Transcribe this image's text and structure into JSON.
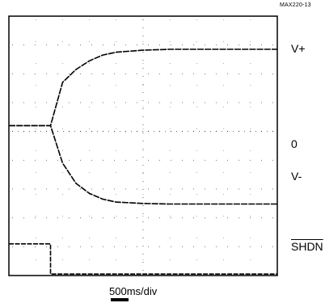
{
  "figure_id": "MAX220-13",
  "chart_data": {
    "type": "line",
    "xlabel": "500ms/div",
    "x_divisions": 10,
    "y_divisions": 9,
    "grid": "dotted",
    "reference_labels": {
      "v_plus": "V+",
      "zero": "0",
      "v_minus": "V-",
      "shdn": "SHDN"
    },
    "series": [
      {
        "x": [
          0,
          0.4,
          0.8,
          1.2,
          1.55,
          2.0,
          2.5,
          3.0,
          3.5,
          4.0,
          5.0,
          6.0,
          7.0,
          8.0,
          9.0,
          10.0
        ],
        "y": [
          5.2,
          5.2,
          5.2,
          5.2,
          5.2,
          6.7,
          7.15,
          7.45,
          7.65,
          7.75,
          7.82,
          7.85,
          7.85,
          7.85,
          7.85,
          7.85
        ]
      },
      {
        "x": [
          0,
          0.4,
          0.8,
          1.2,
          1.55,
          2.0,
          2.5,
          3.0,
          3.5,
          4.0,
          5.0,
          6.0,
          7.0,
          8.0,
          9.0,
          10.0
        ],
        "y": [
          5.2,
          5.2,
          5.2,
          5.2,
          5.2,
          3.9,
          3.2,
          2.85,
          2.65,
          2.55,
          2.5,
          2.48,
          2.48,
          2.48,
          2.48,
          2.48
        ]
      },
      {
        "x": [
          0,
          1.55,
          1.55,
          2.0,
          4.0,
          6.0,
          8.0,
          10.0
        ],
        "y": [
          1.1,
          1.1,
          0.05,
          0.05,
          0.05,
          0.05,
          0.05,
          0.05
        ]
      }
    ]
  }
}
